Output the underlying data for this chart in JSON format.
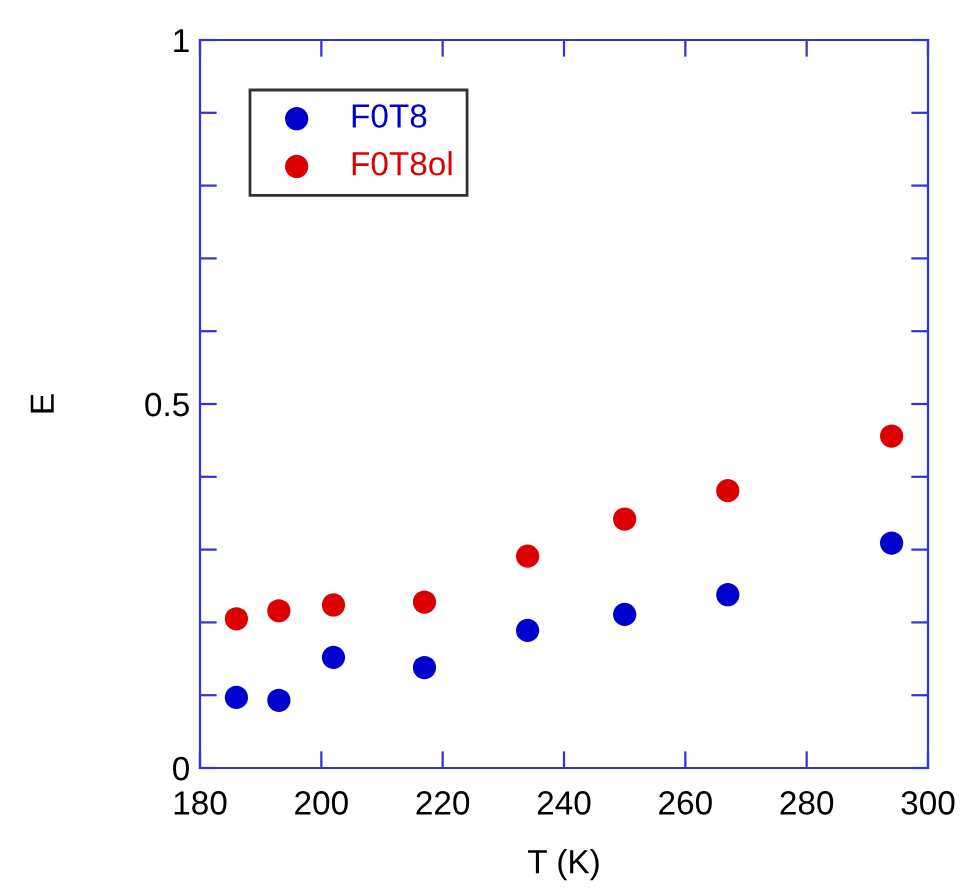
{
  "chart_data": {
    "type": "scatter",
    "xlabel": "T (K)",
    "ylabel": "E",
    "x": [
      186,
      193,
      202,
      217,
      234,
      250,
      267,
      294
    ],
    "series": [
      {
        "name": "F0T8",
        "color": "#0000cc",
        "values": [
          0.097,
          0.093,
          0.152,
          0.138,
          0.189,
          0.211,
          0.238,
          0.309
        ]
      },
      {
        "name": "F0T8ol",
        "color": "#dd0000",
        "values": [
          0.205,
          0.216,
          0.224,
          0.228,
          0.291,
          0.342,
          0.381,
          0.456
        ]
      }
    ],
    "xlim": [
      180,
      300
    ],
    "xticks": [
      180,
      200,
      220,
      240,
      260,
      280,
      300
    ],
    "ylim": [
      0,
      1
    ],
    "yticks": [
      0,
      {
        "value": 0.1,
        "label": null
      },
      {
        "value": 0.2,
        "label": null
      },
      {
        "value": 0.3,
        "label": null
      },
      {
        "value": 0.4,
        "label": null
      },
      0.5,
      {
        "value": 0.6,
        "label": null
      },
      {
        "value": 0.7,
        "label": null
      },
      {
        "value": 0.8,
        "label": null
      },
      {
        "value": 0.9,
        "label": null
      },
      1
    ],
    "marker": "circle",
    "grid": false,
    "legend": "top left"
  }
}
